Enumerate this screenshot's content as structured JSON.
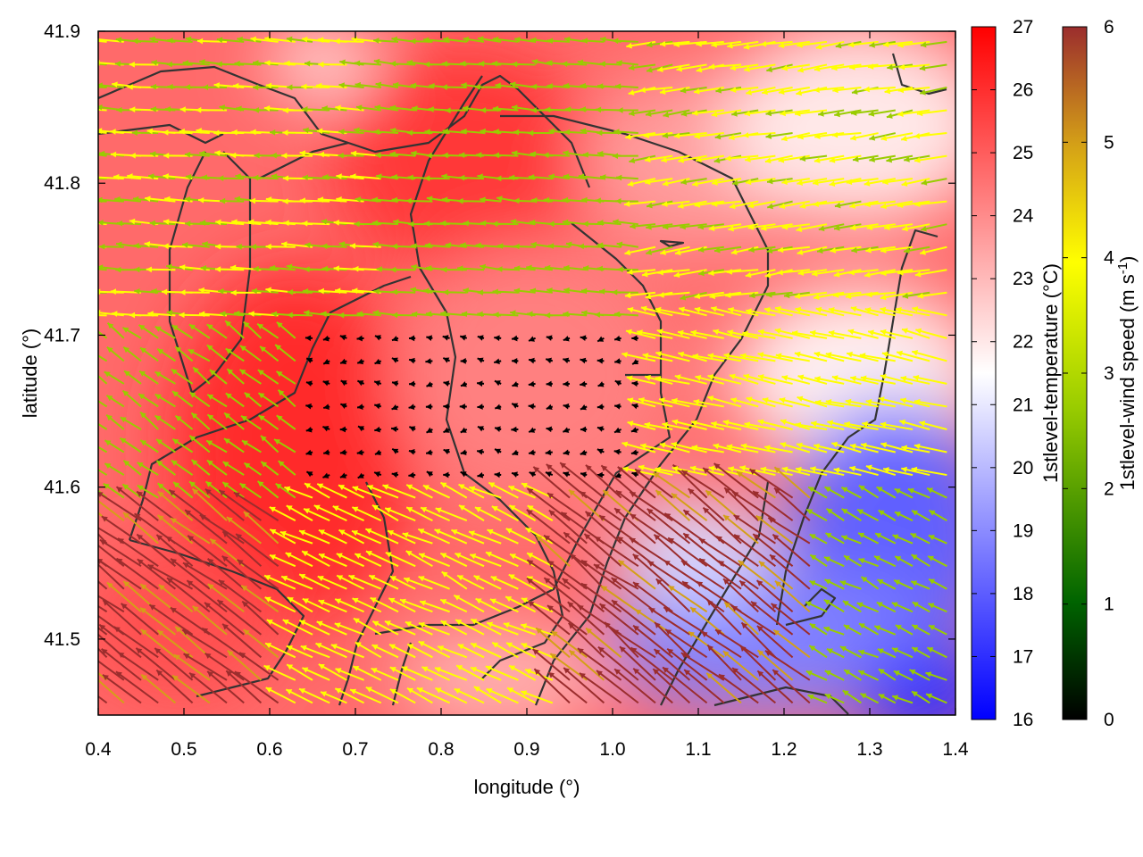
{
  "chart_data": {
    "type": "heatmap",
    "title": "",
    "xlabel": "longitude (°)",
    "ylabel": "latitude (°)",
    "xlim": [
      0.4,
      1.4
    ],
    "ylim": [
      41.45,
      41.9
    ],
    "x_ticks": [
      "0.4",
      "0.5",
      "0.6",
      "0.7",
      "0.8",
      "0.9",
      "1.0",
      "1.1",
      "1.2",
      "1.3",
      "1.4"
    ],
    "y_ticks": [
      "41.5",
      "41.6",
      "41.7",
      "41.8",
      "41.9"
    ],
    "grid": false,
    "temperature_colorbar": {
      "label": "1stlevel-temperature (°C)",
      "range": [
        16,
        27
      ],
      "ticks": [
        "16",
        "17",
        "18",
        "19",
        "20",
        "21",
        "22",
        "23",
        "24",
        "25",
        "26",
        "27"
      ],
      "colors": {
        "low": "#0000ff",
        "mid": "#ffffff",
        "high": "#ff0000"
      }
    },
    "wind_colorbar": {
      "label_main": "1stlevel-wind speed (m s",
      "label_sup": "-1",
      "label_end": ")",
      "range": [
        0,
        6
      ],
      "ticks": [
        "0",
        "1",
        "2",
        "3",
        "4",
        "5",
        "6"
      ],
      "colors": [
        "#000000",
        "#006400",
        "#99cc00",
        "#ffff00",
        "#d4a017",
        "#9b2d2d"
      ]
    },
    "temperature_field_description": "approximate: warm (24-27 °C) over west and centre, cool (16-19 °C) in south-east",
    "wind_regions": [
      {
        "name": "north-west",
        "lon": [
          0.4,
          0.75
        ],
        "lat": [
          41.7,
          41.9
        ],
        "u": -3,
        "v": 0.2
      },
      {
        "name": "centre-north",
        "lon": [
          0.75,
          1.05
        ],
        "lat": [
          41.7,
          41.9
        ],
        "u": -2.5,
        "v": 0.2
      },
      {
        "name": "north-east",
        "lon": [
          1.05,
          1.4
        ],
        "lat": [
          41.72,
          41.9
        ],
        "u": -3.2,
        "v": -0.5
      },
      {
        "name": "west",
        "lon": [
          0.4,
          0.65
        ],
        "lat": [
          41.58,
          41.72
        ],
        "u": -2,
        "v": 1.5
      },
      {
        "name": "centre",
        "lon": [
          0.65,
          1.05
        ],
        "lat": [
          41.6,
          41.72
        ],
        "u": -0.4,
        "v": 0
      },
      {
        "name": "east",
        "lon": [
          1.05,
          1.4
        ],
        "lat": [
          41.6,
          41.72
        ],
        "u": -3.5,
        "v": 0.8
      },
      {
        "name": "south-west",
        "lon": [
          0.4,
          0.62
        ],
        "lat": [
          41.45,
          41.58
        ],
        "u": -4.5,
        "v": 3.5
      },
      {
        "name": "south-centre",
        "lon": [
          0.62,
          0.95
        ],
        "lat": [
          41.45,
          41.6
        ],
        "u": -3.2,
        "v": 1.5
      },
      {
        "name": "south-east",
        "lon": [
          0.95,
          1.25
        ],
        "lat": [
          41.45,
          41.6
        ],
        "u": -4.5,
        "v": 3.5
      },
      {
        "name": "far-south-east",
        "lon": [
          1.25,
          1.4
        ],
        "lat": [
          41.45,
          41.6
        ],
        "u": -2,
        "v": 1
      }
    ]
  }
}
